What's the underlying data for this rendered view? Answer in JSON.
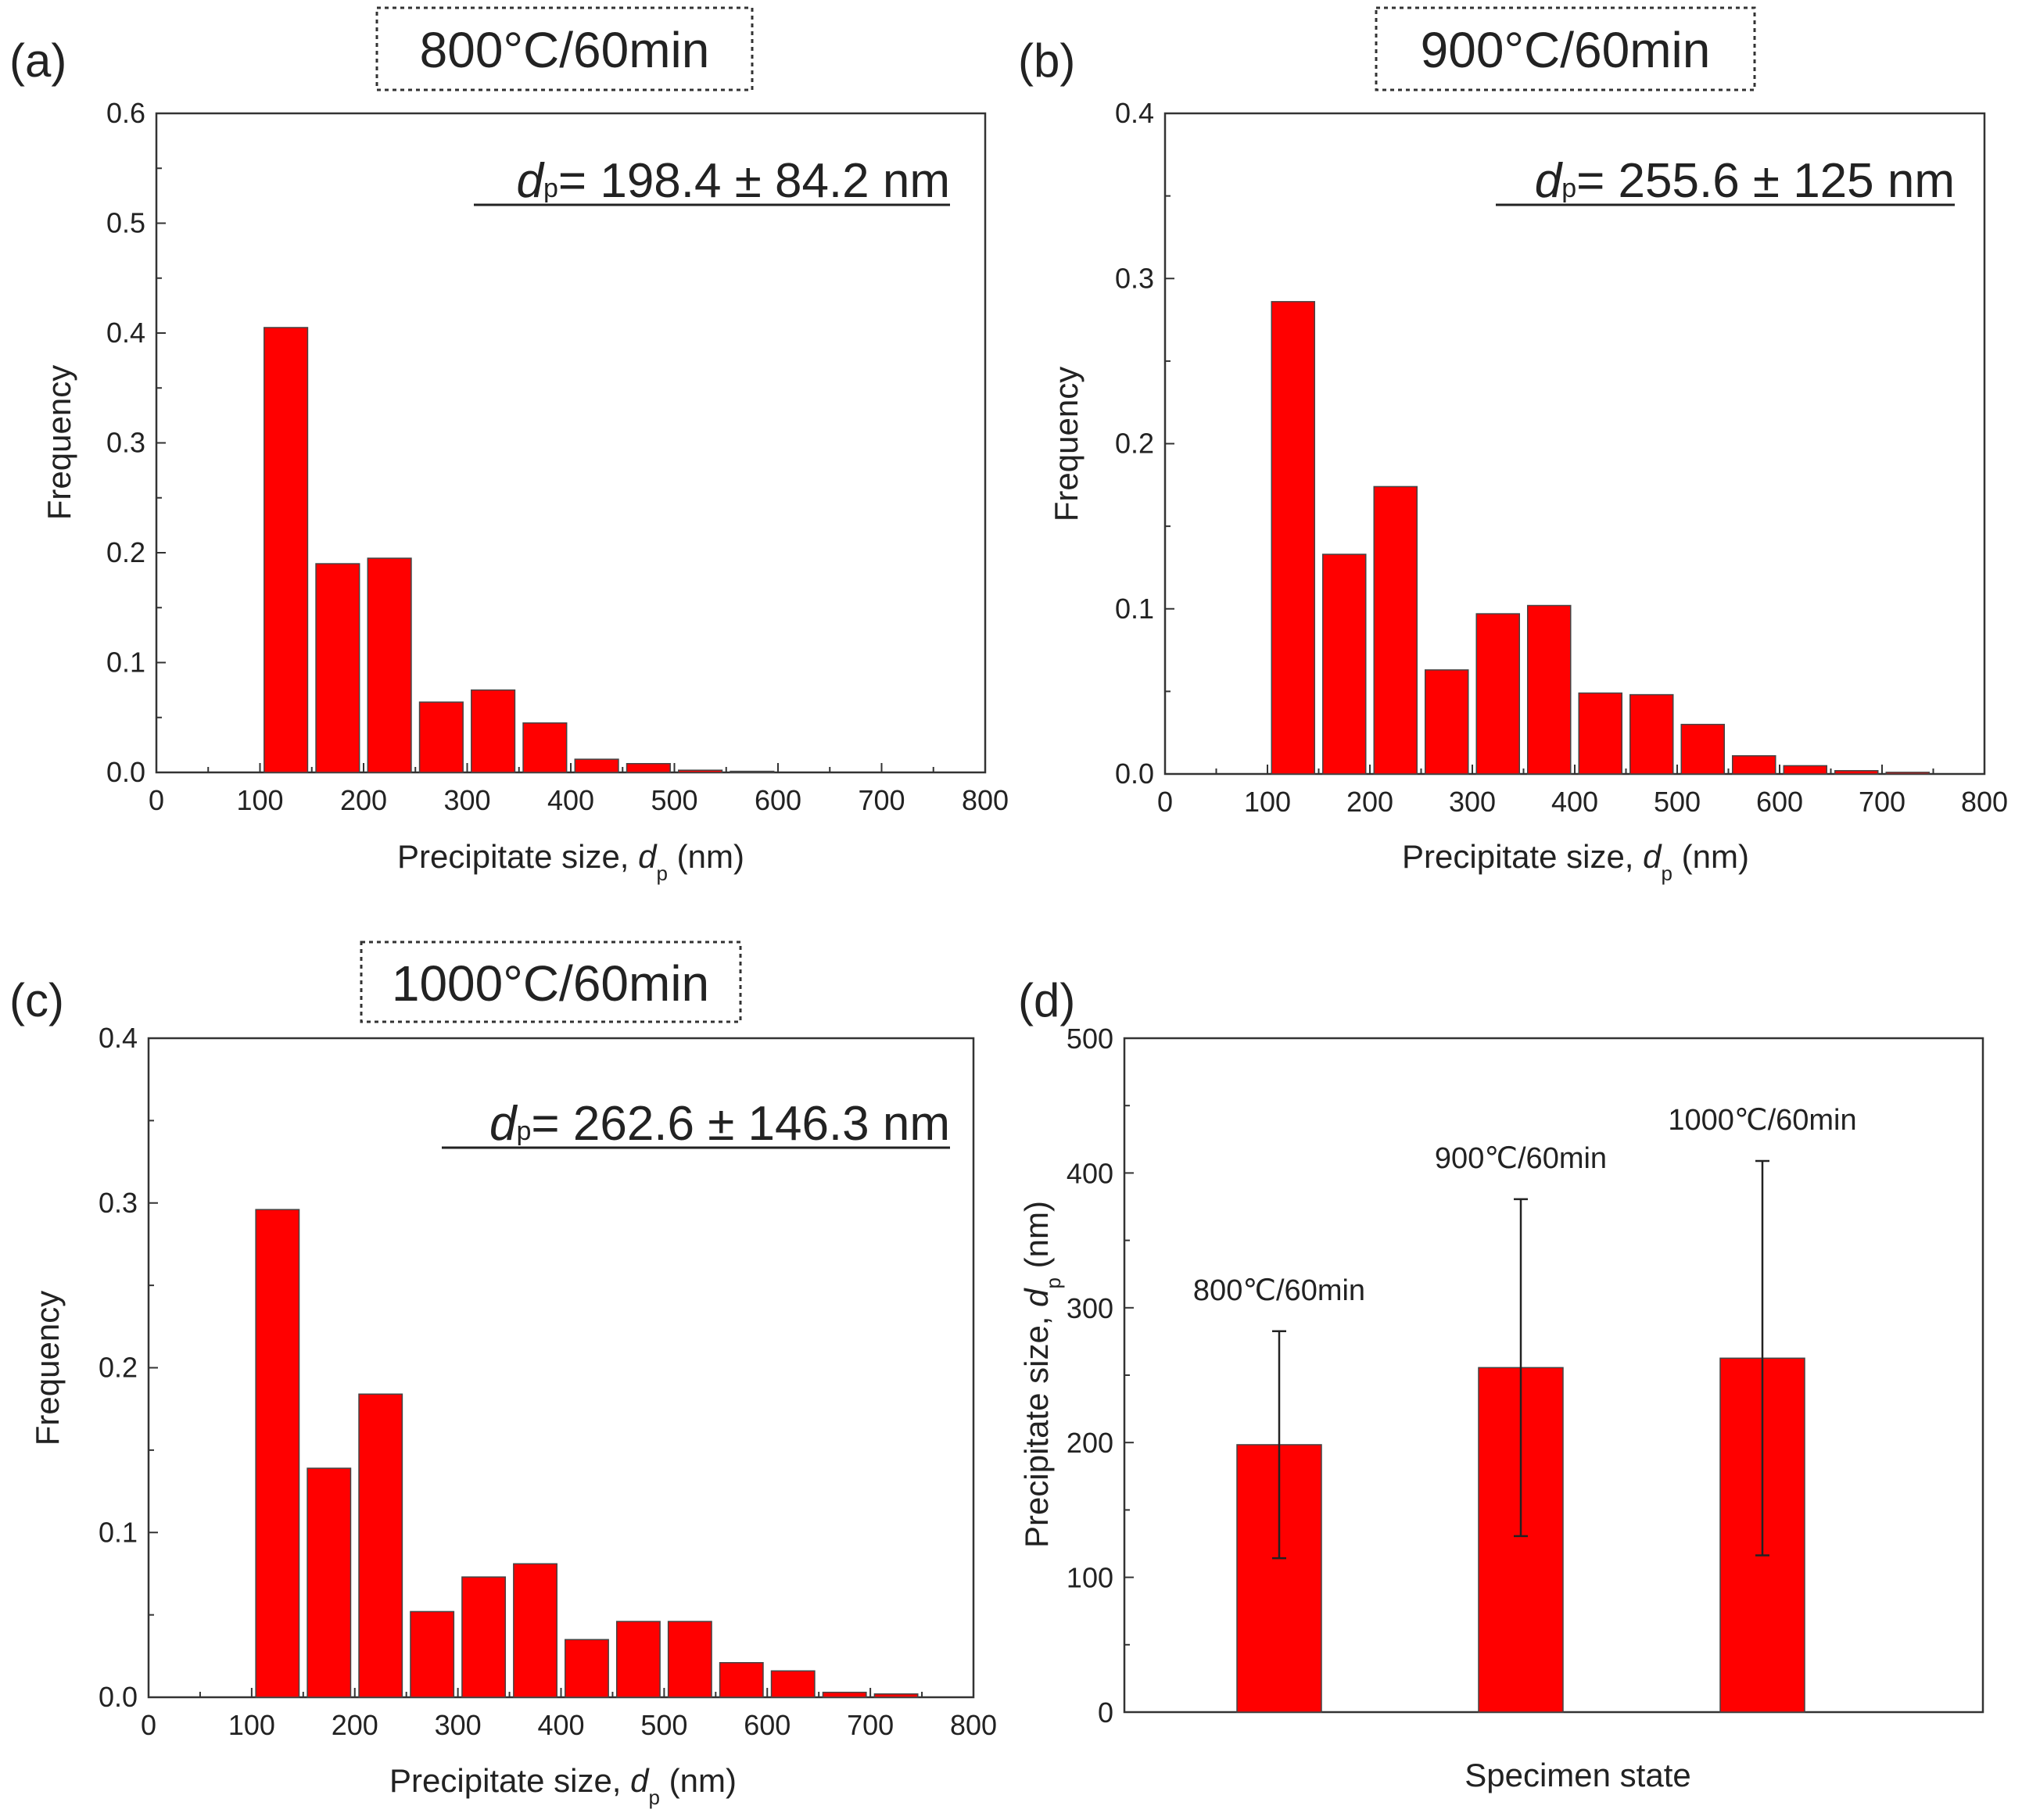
{
  "chart_data": [
    {
      "type": "bar",
      "panel": "(a)",
      "boxed_title": "800°C/60min",
      "stat": {
        "symbol": "d",
        "subscript": "p",
        "text": "= 198.4 ± 84.2 nm"
      },
      "xlabel": {
        "prefix": "Precipitate size, ",
        "symbol": "d",
        "subscript": "p",
        "suffix": " (nm)"
      },
      "ylabel": "Frequency",
      "xlim": [
        0,
        800
      ],
      "ylim": [
        0,
        0.6
      ],
      "xticks": [
        "0",
        "100",
        "200",
        "300",
        "400",
        "500",
        "600",
        "700",
        "800"
      ],
      "yticks": [
        "0.0",
        "0.1",
        "0.2",
        "0.3",
        "0.4",
        "0.5",
        "0.6"
      ],
      "bin_centers": [
        125,
        175,
        225,
        275,
        325,
        375,
        425,
        475,
        525,
        575
      ],
      "values": [
        0.405,
        0.19,
        0.195,
        0.064,
        0.075,
        0.045,
        0.012,
        0.008,
        0.002,
        0.001
      ]
    },
    {
      "type": "bar",
      "panel": "(b)",
      "boxed_title": "900°C/60min",
      "stat": {
        "symbol": "d",
        "subscript": "p",
        "text": "= 255.6 ± 125 nm"
      },
      "xlabel": {
        "prefix": "Precipitate size, ",
        "symbol": "d",
        "subscript": "p",
        "suffix": " (nm)"
      },
      "ylabel": "Frequency",
      "xlim": [
        0,
        800
      ],
      "ylim": [
        0,
        0.4
      ],
      "xticks": [
        "0",
        "100",
        "200",
        "300",
        "400",
        "500",
        "600",
        "700",
        "800"
      ],
      "yticks": [
        "0.0",
        "0.1",
        "0.2",
        "0.3",
        "0.4"
      ],
      "bin_centers": [
        125,
        175,
        225,
        275,
        325,
        375,
        425,
        475,
        525,
        575,
        625,
        675,
        725
      ],
      "values": [
        0.286,
        0.133,
        0.174,
        0.063,
        0.097,
        0.102,
        0.049,
        0.048,
        0.03,
        0.011,
        0.005,
        0.002,
        0.001
      ]
    },
    {
      "type": "bar",
      "panel": "(c)",
      "boxed_title": "1000°C/60min",
      "stat": {
        "symbol": "d",
        "subscript": "p",
        "text": "= 262.6 ± 146.3 nm"
      },
      "xlabel": {
        "prefix": "Precipitate size, ",
        "symbol": "d",
        "subscript": "p",
        "suffix": " (nm)"
      },
      "ylabel": "Frequency",
      "xlim": [
        0,
        800
      ],
      "ylim": [
        0,
        0.4
      ],
      "xticks": [
        "0",
        "100",
        "200",
        "300",
        "400",
        "500",
        "600",
        "700",
        "800"
      ],
      "yticks": [
        "0.0",
        "0.1",
        "0.2",
        "0.3",
        "0.4"
      ],
      "bin_centers": [
        125,
        175,
        225,
        275,
        325,
        375,
        425,
        475,
        525,
        575,
        625,
        675,
        725
      ],
      "values": [
        0.296,
        0.139,
        0.184,
        0.052,
        0.073,
        0.081,
        0.035,
        0.046,
        0.046,
        0.021,
        0.016,
        0.003,
        0.002
      ]
    },
    {
      "type": "bar",
      "panel": "(d)",
      "xlabel": "Specimen state",
      "ylabel": {
        "prefix": "Precipitate size, ",
        "symbol": "d",
        "subscript": "p",
        "suffix": " (nm)"
      },
      "ylim": [
        0,
        500
      ],
      "yticks": [
        "0",
        "100",
        "200",
        "300",
        "400",
        "500"
      ],
      "categories": [
        "800℃/60min",
        "900℃/60min",
        "1000℃/60min"
      ],
      "values": [
        198.4,
        255.6,
        262.6
      ],
      "errors": [
        84.2,
        125,
        146.3
      ]
    }
  ],
  "colors": {
    "bar": "#ff0000",
    "axis": "#333333",
    "error_bar": "#222222"
  }
}
